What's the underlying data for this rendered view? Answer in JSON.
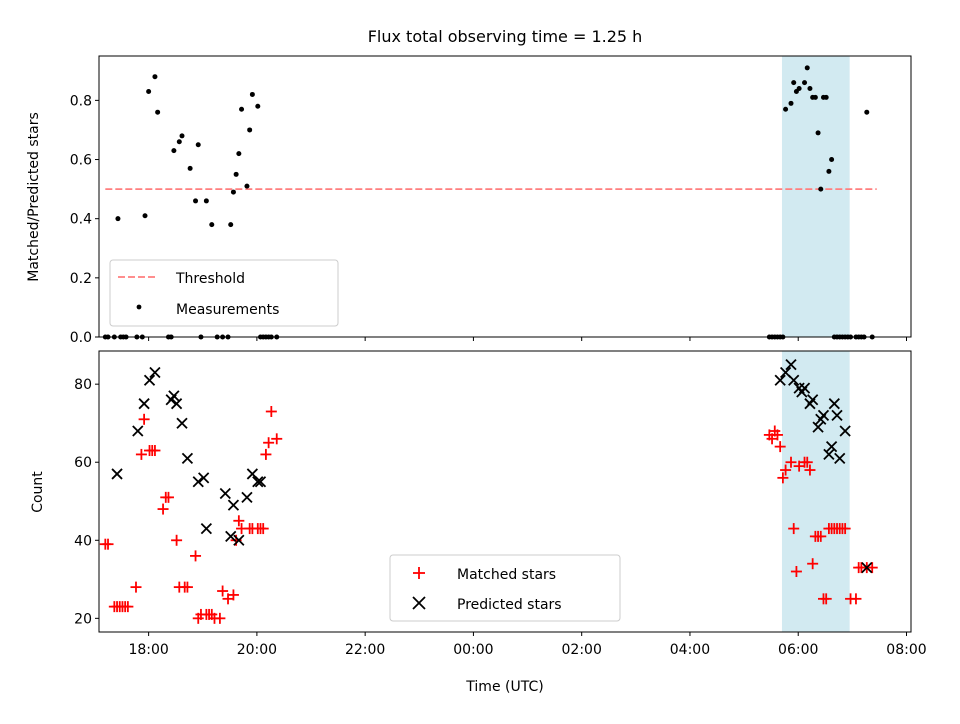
{
  "title": "Flux total observing time = 1.25 h",
  "xlabel": "Time (UTC)",
  "colors": {
    "threshold": "#ff7f7f",
    "measurements": "#000000",
    "matched": "#ff0000",
    "predicted": "#000000",
    "shade_fill": "#add8e6"
  },
  "chart_data": [
    {
      "type": "scatter",
      "ylabel": "Matched/Predicted stars",
      "ylim": [
        0,
        0.95
      ],
      "xlim": [
        "17:05",
        "08:05"
      ],
      "grid": false,
      "legend_position": "lower left",
      "yticks": [
        0.0,
        0.2,
        0.4,
        0.6,
        0.8
      ],
      "ytick_labels": [
        "0.0",
        "0.2",
        "0.4",
        "0.6",
        "0.8"
      ],
      "xticks": [
        "18:00",
        "20:00",
        "22:00",
        "00:00",
        "02:00",
        "04:00",
        "06:00",
        "08:00"
      ],
      "shaded_interval": [
        "05:42",
        "06:57"
      ],
      "series": [
        {
          "name": "Threshold",
          "kind": "dashed-line",
          "x": [
            "17:12",
            "07:27"
          ],
          "y": [
            0.5,
            0.5
          ]
        },
        {
          "name": "Measurements",
          "kind": "points",
          "x": [
            "17:12",
            "17:15",
            "17:22",
            "17:26",
            "17:29",
            "17:32",
            "17:35",
            "17:47",
            "17:53",
            "17:56",
            "18:00",
            "18:07",
            "18:10",
            "18:22",
            "18:25",
            "18:28",
            "18:34",
            "18:37",
            "18:46",
            "18:52",
            "18:55",
            "18:58",
            "19:04",
            "19:10",
            "19:16",
            "19:22",
            "19:28",
            "19:31",
            "19:34",
            "19:37",
            "19:40",
            "19:43",
            "19:49",
            "19:52",
            "19:55",
            "20:01",
            "20:04",
            "20:07",
            "20:10",
            "20:13",
            "20:16",
            "20:22",
            "05:28",
            "05:31",
            "05:34",
            "05:37",
            "05:40",
            "05:43",
            "05:46",
            "05:52",
            "05:55",
            "05:58",
            "06:01",
            "06:07",
            "06:10",
            "06:13",
            "06:16",
            "06:19",
            "06:22",
            "06:25",
            "06:28",
            "06:31",
            "06:34",
            "06:37",
            "06:40",
            "06:43",
            "06:46",
            "06:49",
            "06:52",
            "06:55",
            "06:58",
            "07:04",
            "07:07",
            "07:10",
            "07:13",
            "07:16",
            "07:22"
          ],
          "y": [
            0.0,
            0.0,
            0.0,
            0.4,
            0.0,
            0.0,
            0.0,
            0.0,
            0.0,
            0.41,
            0.83,
            0.88,
            0.76,
            0.0,
            0.0,
            0.63,
            0.66,
            0.68,
            0.57,
            0.46,
            0.65,
            0.0,
            0.46,
            0.38,
            0.0,
            0.0,
            0.0,
            0.38,
            0.49,
            0.55,
            0.62,
            0.77,
            0.51,
            0.7,
            0.82,
            0.78,
            0.0,
            0.0,
            0.0,
            0.0,
            0.0,
            0.0,
            0.0,
            0.0,
            0.0,
            0.0,
            0.0,
            0.0,
            0.77,
            0.79,
            0.86,
            0.83,
            0.84,
            0.86,
            0.91,
            0.84,
            0.81,
            0.81,
            0.69,
            0.5,
            0.81,
            0.81,
            0.56,
            0.6,
            0.0,
            0.0,
            0.0,
            0.0,
            0.0,
            0.0,
            0.0,
            0.0,
            0.0,
            0.0,
            0.0,
            0.76,
            0.0
          ]
        }
      ]
    },
    {
      "type": "scatter",
      "ylabel": "Count",
      "ylim": [
        16.5,
        88.5
      ],
      "xlim": [
        "17:05",
        "08:05"
      ],
      "grid": false,
      "legend_position": "lower center",
      "yticks": [
        20,
        40,
        60,
        80
      ],
      "ytick_labels": [
        "20",
        "40",
        "60",
        "80"
      ],
      "xticks": [
        "18:00",
        "20:00",
        "22:00",
        "00:00",
        "02:00",
        "04:00",
        "06:00",
        "08:00"
      ],
      "xtick_labels": [
        "18:00",
        "20:00",
        "22:00",
        "00:00",
        "02:00",
        "04:00",
        "06:00",
        "08:00"
      ],
      "shaded_interval": [
        "05:42",
        "06:57"
      ],
      "series": [
        {
          "name": "Matched stars",
          "marker": "+",
          "x": [
            "17:12",
            "17:15",
            "17:22",
            "17:25",
            "17:28",
            "17:31",
            "17:34",
            "17:37",
            "17:46",
            "17:52",
            "17:55",
            "18:01",
            "18:04",
            "18:07",
            "18:16",
            "18:19",
            "18:22",
            "18:31",
            "18:34",
            "18:40",
            "18:43",
            "18:52",
            "18:55",
            "18:58",
            "19:04",
            "19:07",
            "19:10",
            "19:13",
            "19:19",
            "19:22",
            "19:28",
            "19:34",
            "19:37",
            "19:40",
            "19:43",
            "19:52",
            "19:55",
            "20:01",
            "20:04",
            "20:07",
            "20:10",
            "20:13",
            "20:16",
            "20:22",
            "05:28",
            "05:31",
            "05:34",
            "05:37",
            "05:40",
            "05:43",
            "05:46",
            "05:52",
            "05:55",
            "05:58",
            "06:01",
            "06:07",
            "06:10",
            "06:13",
            "06:16",
            "06:19",
            "06:22",
            "06:25",
            "06:28",
            "06:31",
            "06:34",
            "06:37",
            "06:40",
            "06:43",
            "06:46",
            "06:49",
            "06:52",
            "06:58",
            "07:04",
            "07:07",
            "07:10",
            "07:16",
            "07:22"
          ],
          "y": [
            39,
            39,
            23,
            23,
            23,
            23,
            23,
            23,
            28,
            62,
            71,
            63,
            63,
            63,
            48,
            51,
            51,
            40,
            28,
            28,
            28,
            36,
            20,
            21,
            21,
            21,
            21,
            20,
            20,
            27,
            25,
            26,
            40,
            45,
            43,
            43,
            43,
            43,
            43,
            43,
            62,
            65,
            73,
            66,
            67,
            66,
            68,
            67,
            64,
            56,
            58,
            60,
            43,
            32,
            59,
            60,
            60,
            58,
            34,
            41,
            41,
            41,
            25,
            25,
            43,
            43,
            43,
            43,
            43,
            43,
            43,
            25,
            25,
            33,
            33,
            33,
            33
          ],
          "y_note": "approximate"
        },
        {
          "name": "Predicted stars",
          "marker": "x",
          "x": [
            "17:25",
            "17:48",
            "17:55",
            "18:01",
            "18:07",
            "18:25",
            "18:28",
            "18:31",
            "18:37",
            "18:43",
            "18:55",
            "19:01",
            "19:04",
            "19:25",
            "19:31",
            "19:34",
            "19:40",
            "19:49",
            "19:55",
            "20:01",
            "20:04",
            "05:40",
            "05:46",
            "05:52",
            "05:55",
            "06:01",
            "06:04",
            "06:07",
            "06:13",
            "06:16",
            "06:22",
            "06:25",
            "06:28",
            "06:34",
            "06:37",
            "06:40",
            "06:43",
            "06:46",
            "06:52",
            "07:16"
          ],
          "y": [
            57,
            68,
            75,
            81,
            83,
            76,
            77,
            75,
            70,
            61,
            55,
            56,
            43,
            52,
            41,
            49,
            40,
            51,
            57,
            55,
            55,
            81,
            83,
            85,
            81,
            79,
            78,
            79,
            75,
            76,
            69,
            71,
            72,
            62,
            64,
            75,
            72,
            61,
            68,
            33
          ]
        }
      ]
    }
  ],
  "legend_top": {
    "threshold_label": "Threshold",
    "measurements_label": "Measurements"
  },
  "legend_bottom": {
    "matched_label": "Matched stars",
    "predicted_label": "Predicted stars"
  }
}
